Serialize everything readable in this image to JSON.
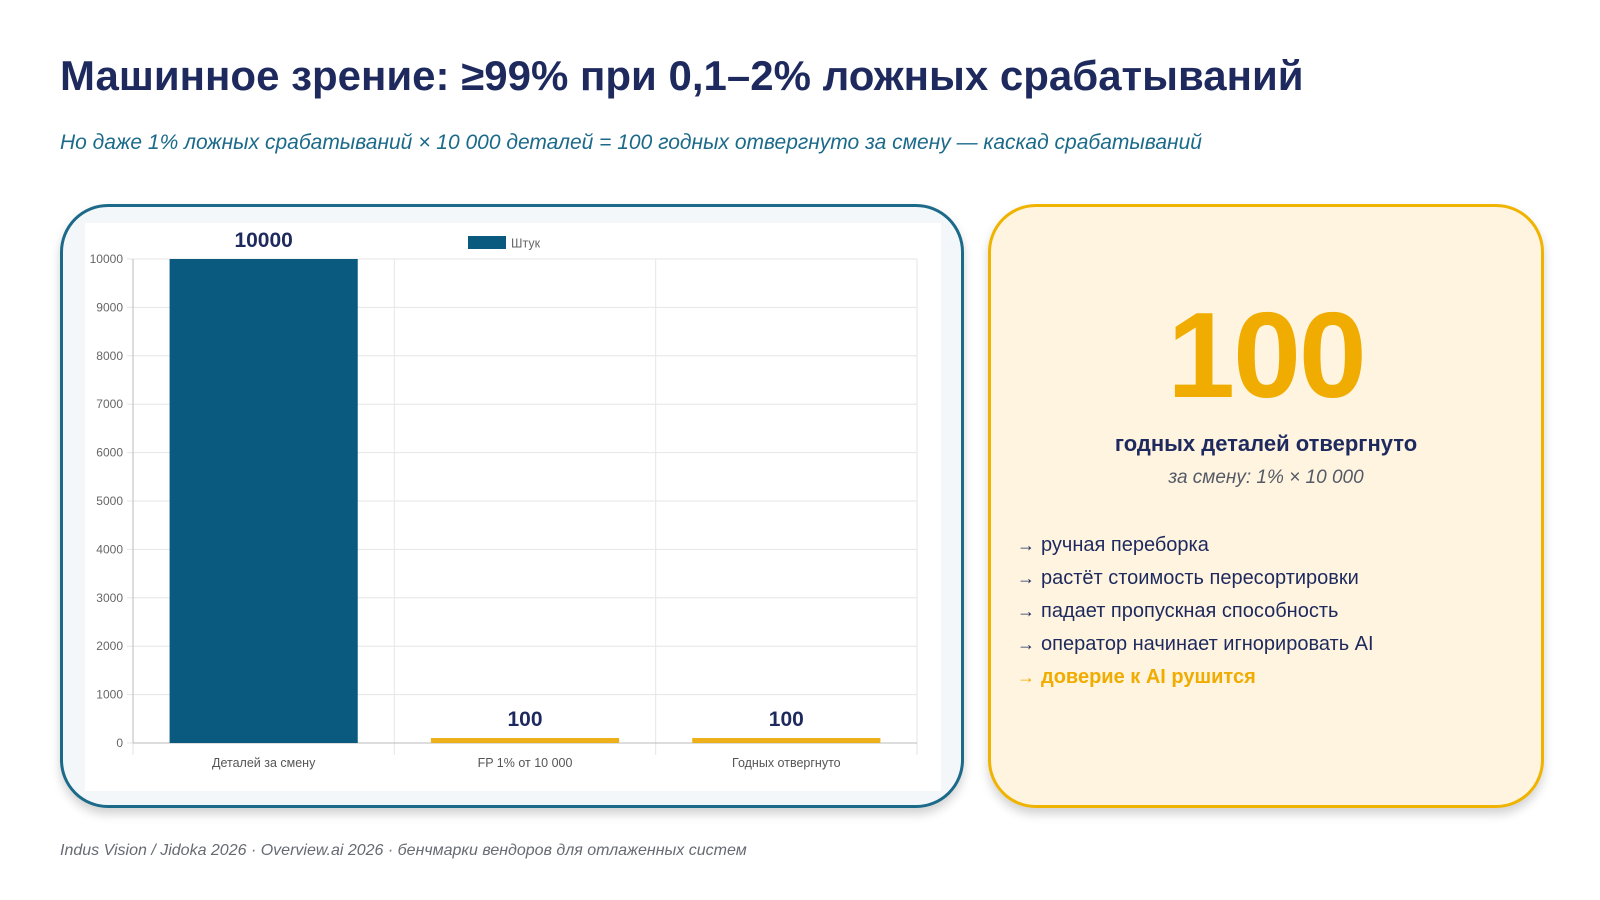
{
  "title": "Машинное зрение: ≥99% при 0,1–2% ложных срабатываний",
  "subtitle": "Но даже 1% ложных срабатываний × 10 000 деталей = 100 годных отвергнуто за смену — каскад срабатываний",
  "colors": {
    "accent_blue": "#0a5a80",
    "accent_gold": "#eeb01a",
    "title": "#1e2a5e",
    "subtitle": "#1b6a8a"
  },
  "chart_data": {
    "type": "bar",
    "categories": [
      "Деталей за смену",
      "FP 1% от 10 000",
      "Годных отвергнуто"
    ],
    "series": [
      {
        "name": "Штук",
        "values": [
          10000,
          100,
          100
        ]
      }
    ],
    "bar_colors": [
      "#0a5a80",
      "#eeb01a",
      "#eeb01a"
    ],
    "data_labels": [
      "10000",
      "100",
      "100"
    ],
    "ylim": [
      0,
      10000
    ],
    "yticks": [
      0,
      1000,
      2000,
      3000,
      4000,
      5000,
      6000,
      7000,
      8000,
      9000,
      10000
    ],
    "grid": true,
    "legend_position": "top-center"
  },
  "highlight": {
    "value": "100",
    "caption": "годных деталей отвергнуто",
    "sub": "за смену: 1% × 10 000",
    "arrow": "→",
    "items": [
      "ручная переборка",
      "растёт стоимость пересортировки",
      "падает пропускная способность",
      "оператор начинает игнорировать AI",
      "доверие к AI рушится"
    ]
  },
  "footer": "Indus Vision / Jidoka 2026 · Overview.ai 2026 · бенчмарки вендоров для отлаженных систем"
}
